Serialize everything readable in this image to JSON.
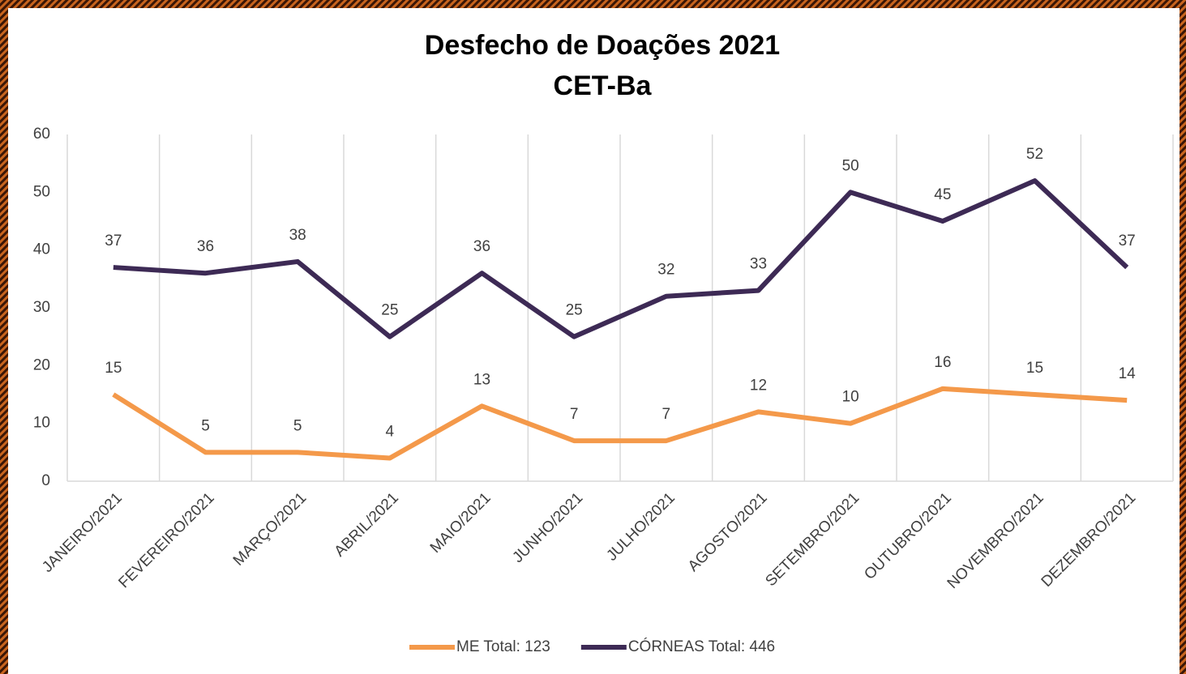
{
  "chart_data": {
    "type": "line",
    "title": "Desfecho de Doações 2021",
    "subtitle": "CET-Ba",
    "categories": [
      "JANEIRO/2021",
      "FEVEREIRO/2021",
      "MARÇO/2021",
      "ABRIL/2021",
      "MAIO/2021",
      "JUNHO/2021",
      "JULHO/2021",
      "AGOSTO/2021",
      "SETEMBRO/2021",
      "OUTUBRO/2021",
      "NOVEMBRO/2021",
      "DEZEMBRO/2021"
    ],
    "series": [
      {
        "name": "ME Total: 123",
        "color": "#f4994a",
        "values": [
          15,
          5,
          5,
          4,
          13,
          7,
          7,
          12,
          10,
          16,
          15,
          14
        ]
      },
      {
        "name": "CÓRNEAS Total: 446",
        "color": "#3d2a55",
        "values": [
          37,
          36,
          38,
          25,
          36,
          25,
          32,
          33,
          50,
          45,
          52,
          37
        ]
      }
    ],
    "ylim": [
      0,
      60
    ],
    "yticks": [
      0,
      10,
      20,
      30,
      40,
      50,
      60
    ],
    "legend": "bottom"
  }
}
